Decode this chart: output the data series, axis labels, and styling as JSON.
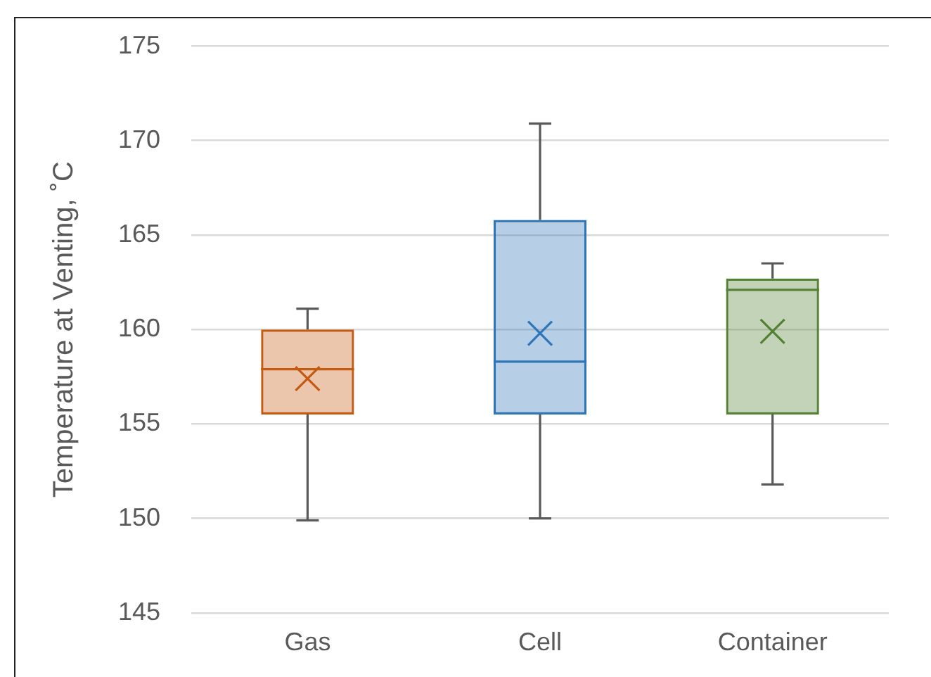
{
  "chart_data": {
    "type": "box",
    "ylabel": "Temperature at Venting, ˚C",
    "categories": [
      "Gas",
      "Cell",
      "Container"
    ],
    "boxes": [
      {
        "low": 149.9,
        "q1": 155.5,
        "median": 157.9,
        "q3": 160.0,
        "high": 161.1,
        "mean": 157.4
      },
      {
        "low": 150.0,
        "q1": 155.5,
        "median": 158.3,
        "q3": 165.8,
        "high": 170.9,
        "mean": 159.8
      },
      {
        "low": 151.8,
        "q1": 155.5,
        "median": 162.1,
        "q3": 162.7,
        "high": 163.5,
        "mean": 159.9
      }
    ],
    "colors": [
      "#c55a11",
      "#2e75b6",
      "#548235"
    ],
    "ylim": [
      145,
      175
    ],
    "yticks": [
      145,
      150,
      155,
      160,
      165,
      170,
      175
    ],
    "grid": "y",
    "legend": false
  }
}
